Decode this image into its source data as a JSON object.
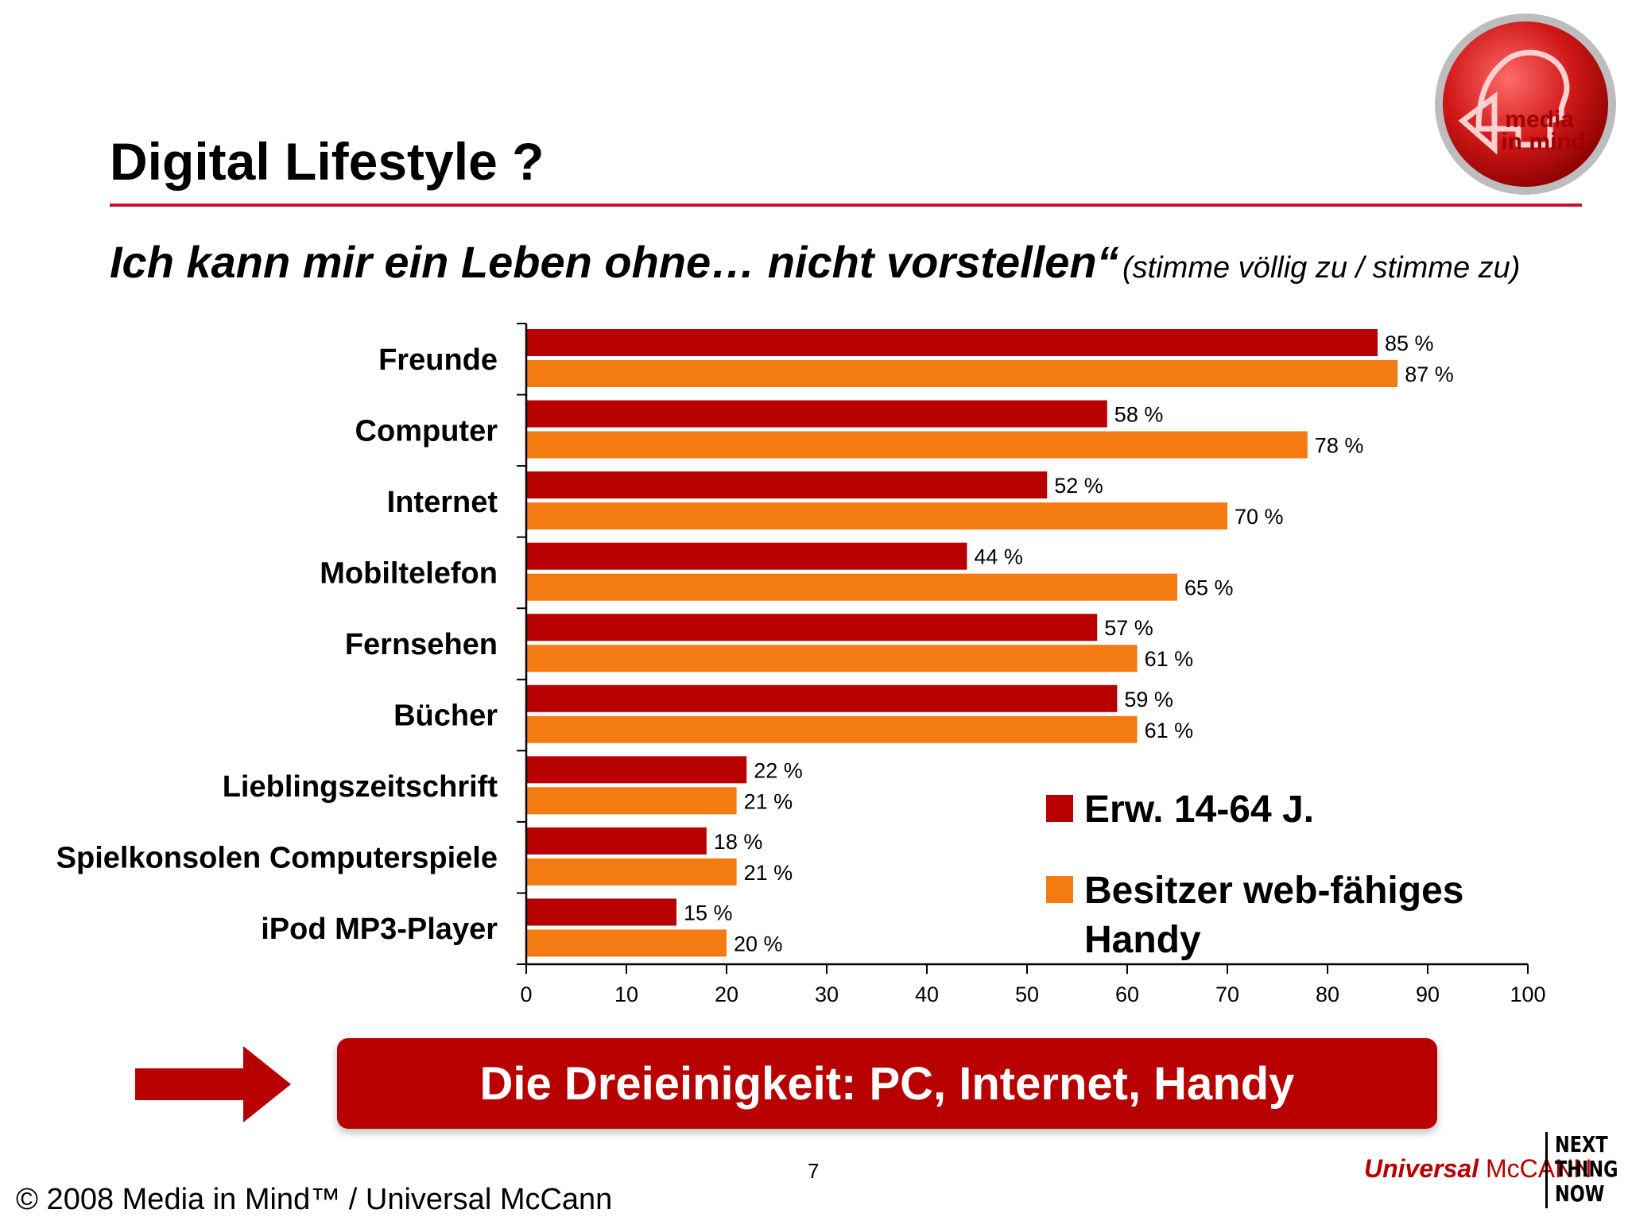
{
  "slide": {
    "title": "Digital Lifestyle ?",
    "subtitle": "Ich kann mir ein Leben ohne… nicht vorstellen“",
    "subtitle_note": "(stimme völlig zu / stimme zu)",
    "banner_text": "Die Dreieinigkeit: PC, Internet, Handy",
    "page_number": "7",
    "copyright": "© 2008 Media in Mind™ / Universal McCann",
    "agency_name_bold": "Universal",
    "agency_name_rest": " McCANN",
    "tagline_lines": [
      "NEXT",
      "THING",
      "NOW"
    ],
    "logo_text_line1": "media",
    "logo_text_line2": "in mind"
  },
  "colors": {
    "accent_red": "#b80000",
    "series_orange": "#f47b12",
    "title_rule": "#c8102e"
  },
  "chart_data": {
    "type": "bar",
    "orientation": "horizontal",
    "categories": [
      "Freunde",
      "Computer",
      "Internet",
      "Mobiltelefon",
      "Fernsehen",
      "Bücher",
      "Lieblingszeitschrift",
      "Spielkonsolen Computerspiele",
      "iPod MP3-Player"
    ],
    "series": [
      {
        "name": "Erw. 14-64 J.",
        "color": "#b80000",
        "values": [
          85,
          58,
          52,
          44,
          57,
          59,
          22,
          18,
          15
        ]
      },
      {
        "name": "Besitzer web-fähiges Handy",
        "color": "#f47b12",
        "values": [
          87,
          78,
          70,
          65,
          61,
          61,
          21,
          21,
          20
        ]
      }
    ],
    "value_suffix": " %",
    "xlim": [
      0,
      100
    ],
    "xticks": [
      0,
      10,
      20,
      30,
      40,
      50,
      60,
      70,
      80,
      90,
      100
    ],
    "grid": false,
    "legend_position": "lower-right inside plot"
  }
}
